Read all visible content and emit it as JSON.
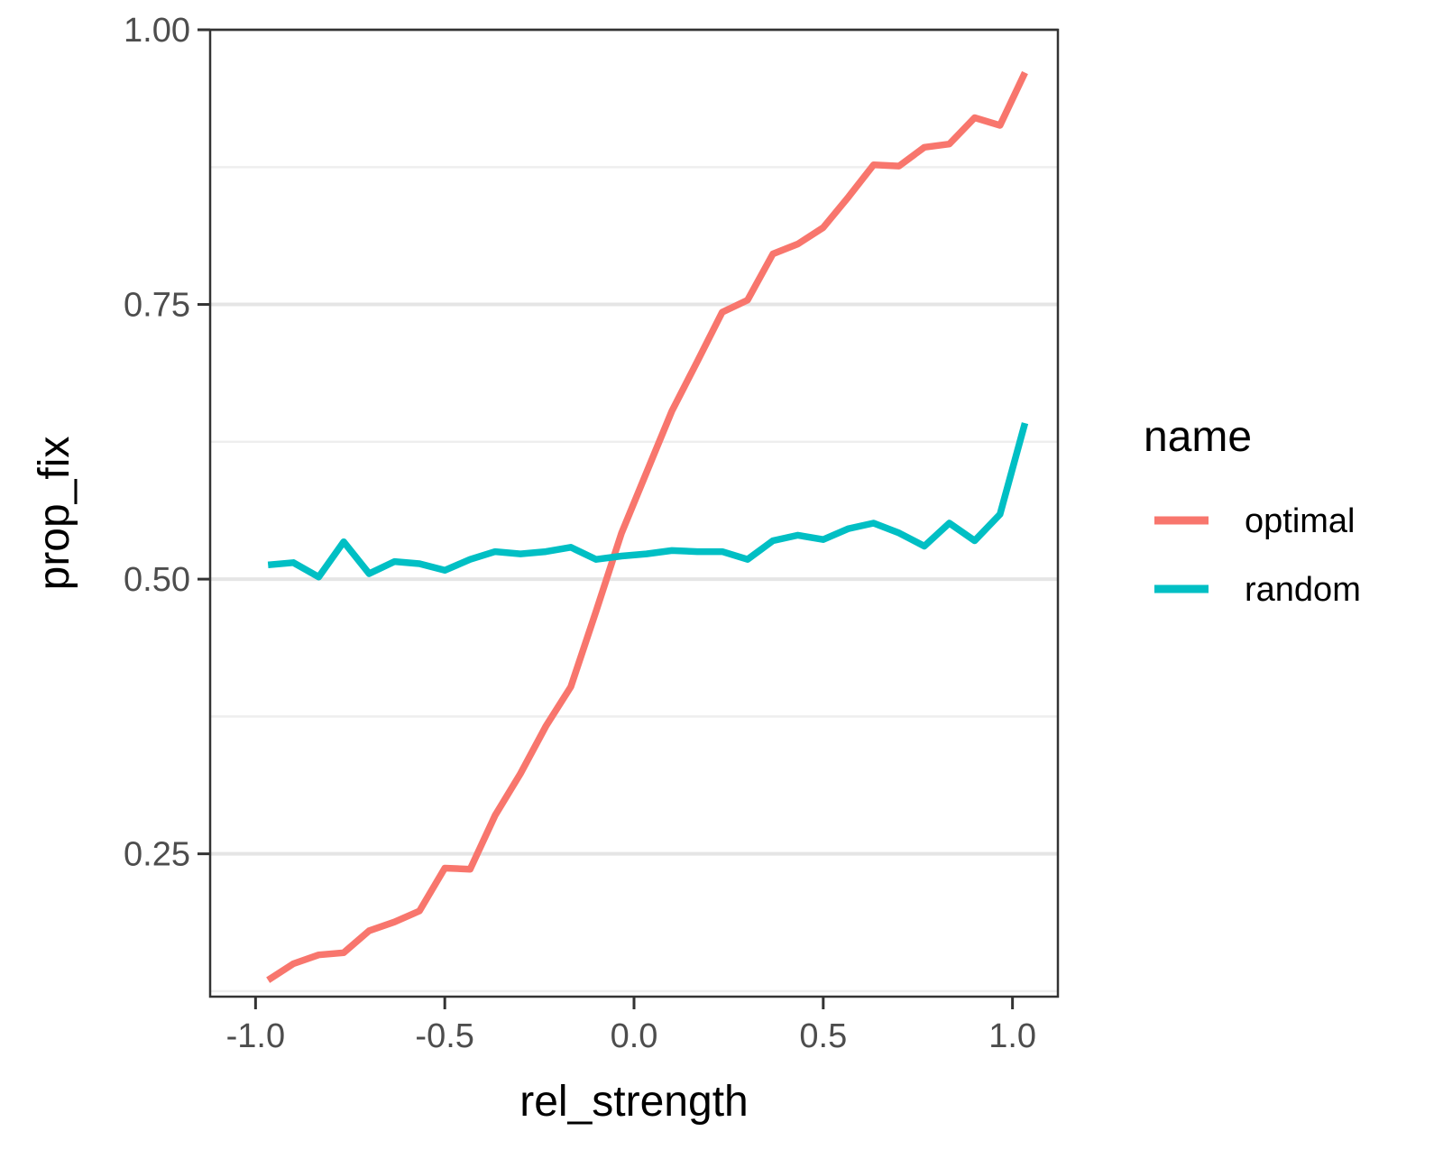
{
  "chart_data": {
    "type": "line",
    "title": "",
    "xlabel": "rel_strength",
    "ylabel": "prop_fix",
    "xlim": [
      -1.12,
      1.12
    ],
    "ylim": [
      0.12,
      1.0
    ],
    "x_ticks": [
      -1.0,
      -0.5,
      0.0,
      0.5,
      1.0
    ],
    "x_tick_labels": [
      "-1.0",
      "-0.5",
      "0.0",
      "0.5",
      "1.0"
    ],
    "y_ticks": [
      0.25,
      0.5,
      0.75,
      1.0
    ],
    "y_tick_labels": [
      "0.25",
      "0.50",
      "0.75",
      "1.00"
    ],
    "y_minor_ticks": [
      0.125,
      0.375,
      0.625,
      0.875
    ],
    "grid": "horizontal",
    "legend": {
      "title": "name",
      "position": "right",
      "entries": [
        "optimal",
        "random"
      ]
    },
    "series": [
      {
        "name": "optimal",
        "color": "#F8766D",
        "x": [
          -0.967,
          -0.9,
          -0.833,
          -0.767,
          -0.7,
          -0.633,
          -0.567,
          -0.5,
          -0.433,
          -0.367,
          -0.3,
          -0.233,
          -0.167,
          -0.1,
          -0.033,
          0.033,
          0.1,
          0.167,
          0.233,
          0.3,
          0.367,
          0.433,
          0.5,
          0.567,
          0.633,
          0.7,
          0.767,
          0.833,
          0.9,
          0.967,
          1.033
        ],
        "y": [
          0.135,
          0.15,
          0.158,
          0.16,
          0.18,
          0.188,
          0.198,
          0.237,
          0.236,
          0.285,
          0.323,
          0.366,
          0.402,
          0.471,
          0.542,
          0.597,
          0.653,
          0.698,
          0.743,
          0.754,
          0.796,
          0.805,
          0.82,
          0.848,
          0.877,
          0.876,
          0.893,
          0.896,
          0.92,
          0.913,
          0.961
        ]
      },
      {
        "name": "random",
        "color": "#00BFC4",
        "x": [
          -0.967,
          -0.9,
          -0.833,
          -0.767,
          -0.7,
          -0.633,
          -0.567,
          -0.5,
          -0.433,
          -0.367,
          -0.3,
          -0.233,
          -0.167,
          -0.1,
          -0.033,
          0.033,
          0.1,
          0.167,
          0.233,
          0.3,
          0.367,
          0.433,
          0.5,
          0.567,
          0.633,
          0.7,
          0.767,
          0.833,
          0.9,
          0.967,
          1.033
        ],
        "y": [
          0.513,
          0.515,
          0.502,
          0.534,
          0.505,
          0.516,
          0.514,
          0.508,
          0.518,
          0.525,
          0.523,
          0.525,
          0.529,
          0.518,
          0.521,
          0.523,
          0.526,
          0.525,
          0.525,
          0.518,
          0.535,
          0.54,
          0.536,
          0.546,
          0.551,
          0.542,
          0.53,
          0.551,
          0.535,
          0.559,
          0.642
        ]
      }
    ]
  }
}
